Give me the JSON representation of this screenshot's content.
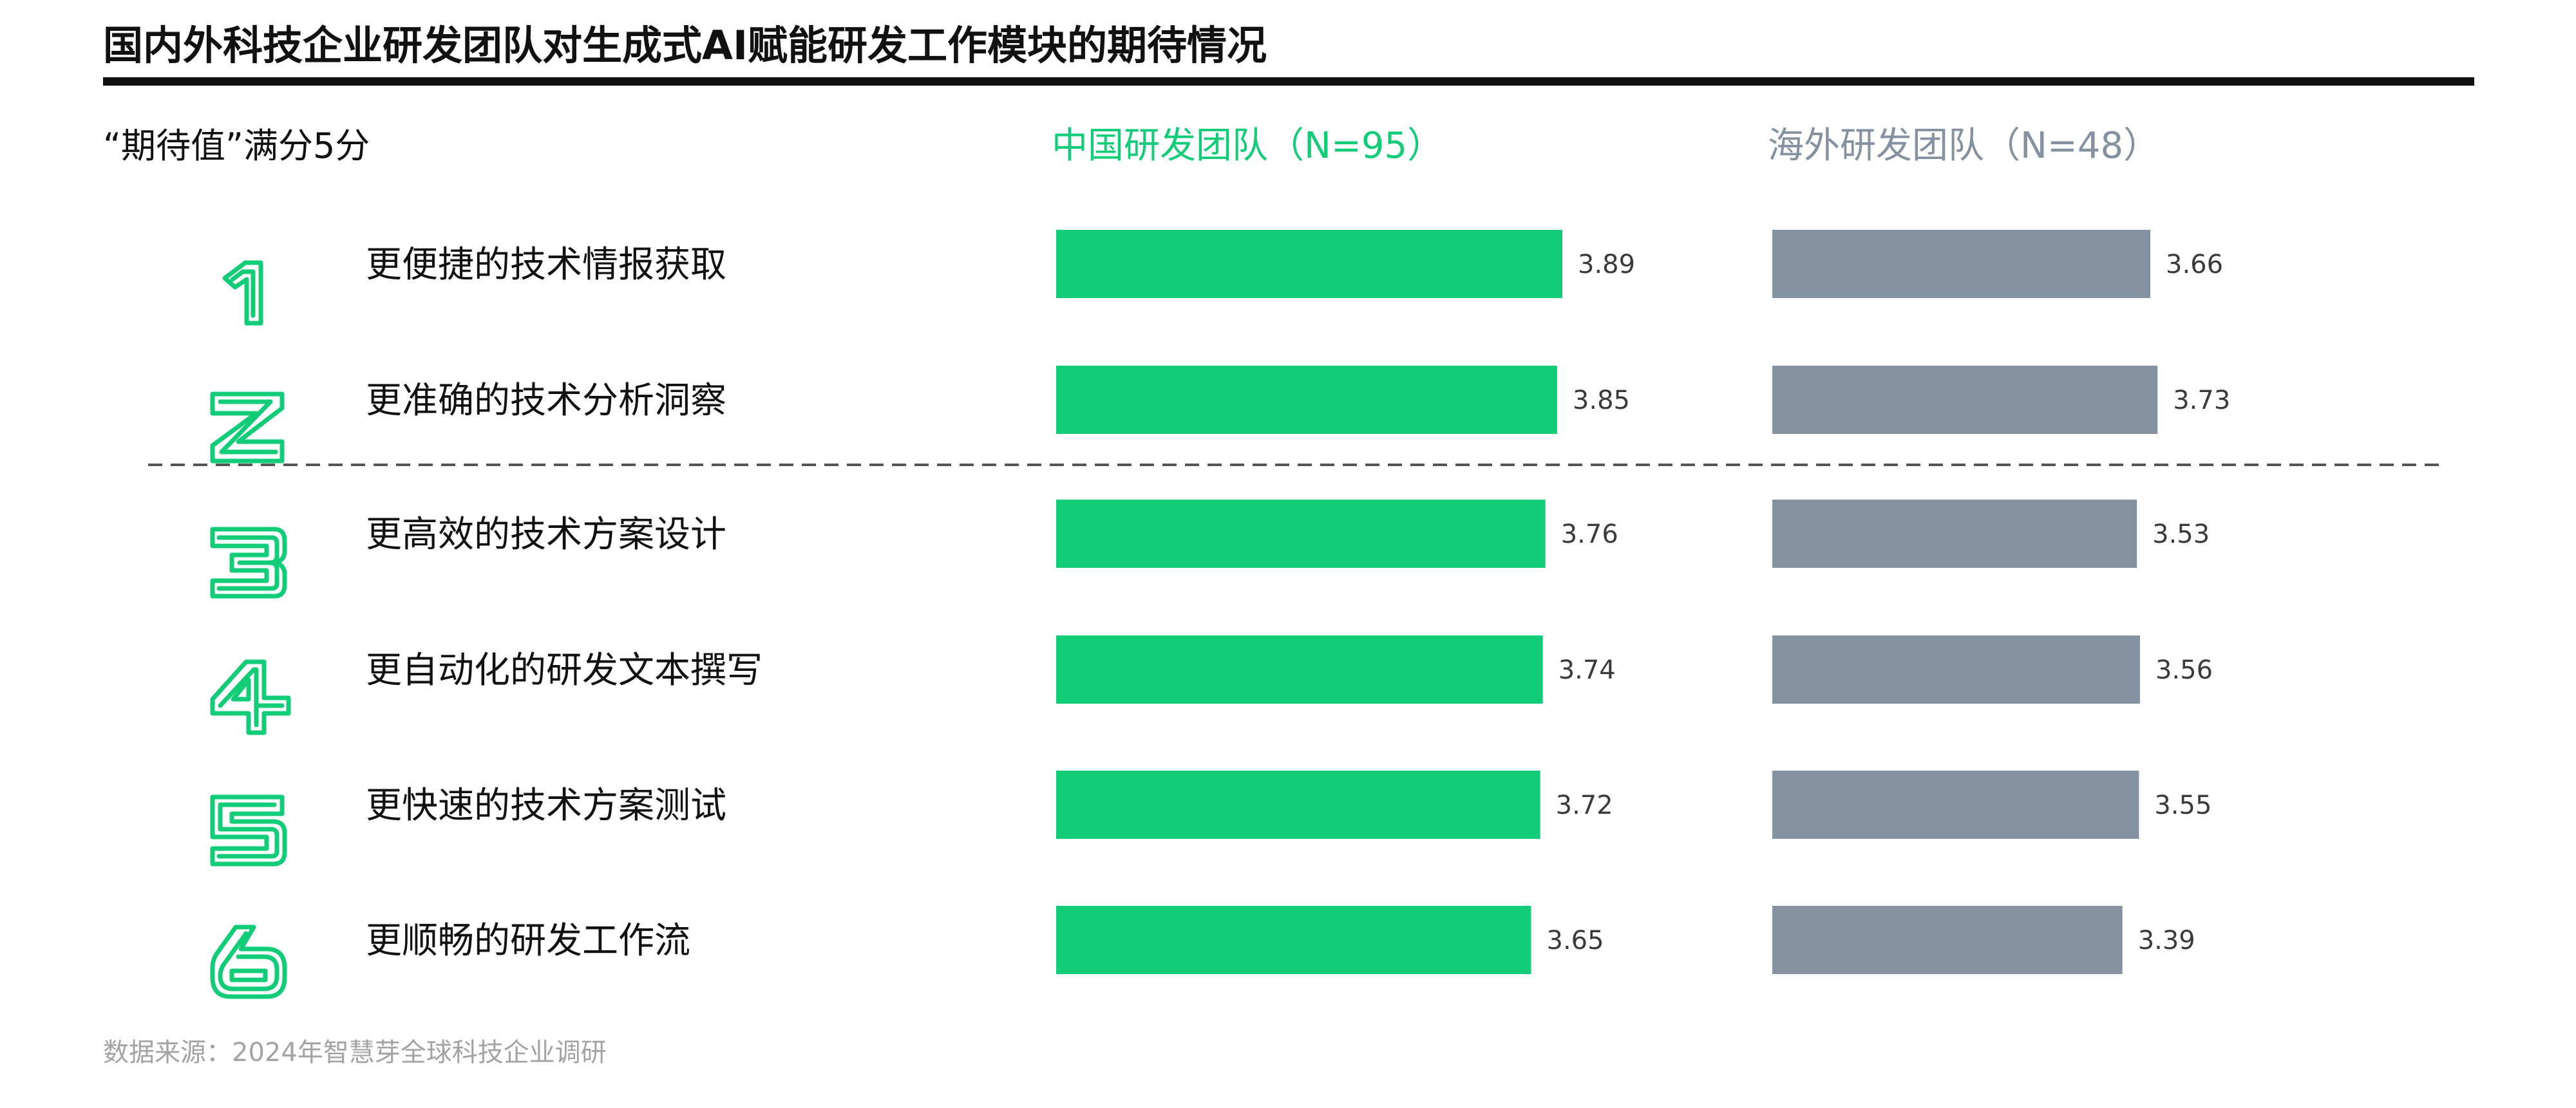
{
  "title": "国内外科技企业研发团队对生成式AI赋能研发工作模块的期待情况",
  "subtitle": "“期待值”满分5分",
  "source": "数据来源：2024年智慧芽全球科技企业调研",
  "colors": {
    "china": "#12cc78",
    "overseas": "#8391a0",
    "rank": "#12cc78"
  },
  "chart_data": {
    "type": "bar",
    "orientation": "horizontal",
    "categories": [
      "更便捷的技术情报获取",
      "更准确的技术分析洞察",
      "更高效的技术方案设计",
      "更自动化的研发文本撰写",
      "更快速的技术方案测试",
      "更顺畅的研发工作流"
    ],
    "ranks": [
      "1",
      "2",
      "3",
      "4",
      "5",
      "6"
    ],
    "series": [
      {
        "name": "中国研发团队（N=95）",
        "values": [
          3.89,
          3.85,
          3.76,
          3.74,
          3.72,
          3.65
        ]
      },
      {
        "name": "海外研发团队（N=48）",
        "values": [
          3.66,
          3.73,
          3.53,
          3.56,
          3.55,
          3.39
        ]
      }
    ],
    "value_labels": {
      "china": [
        "3.89",
        "3.85",
        "3.76",
        "3.74",
        "3.72",
        "3.65"
      ],
      "overseas": [
        "3.66",
        "3.73",
        "3.53",
        "3.56",
        "3.55",
        "3.39"
      ]
    },
    "separator_after_rank": 2
  }
}
